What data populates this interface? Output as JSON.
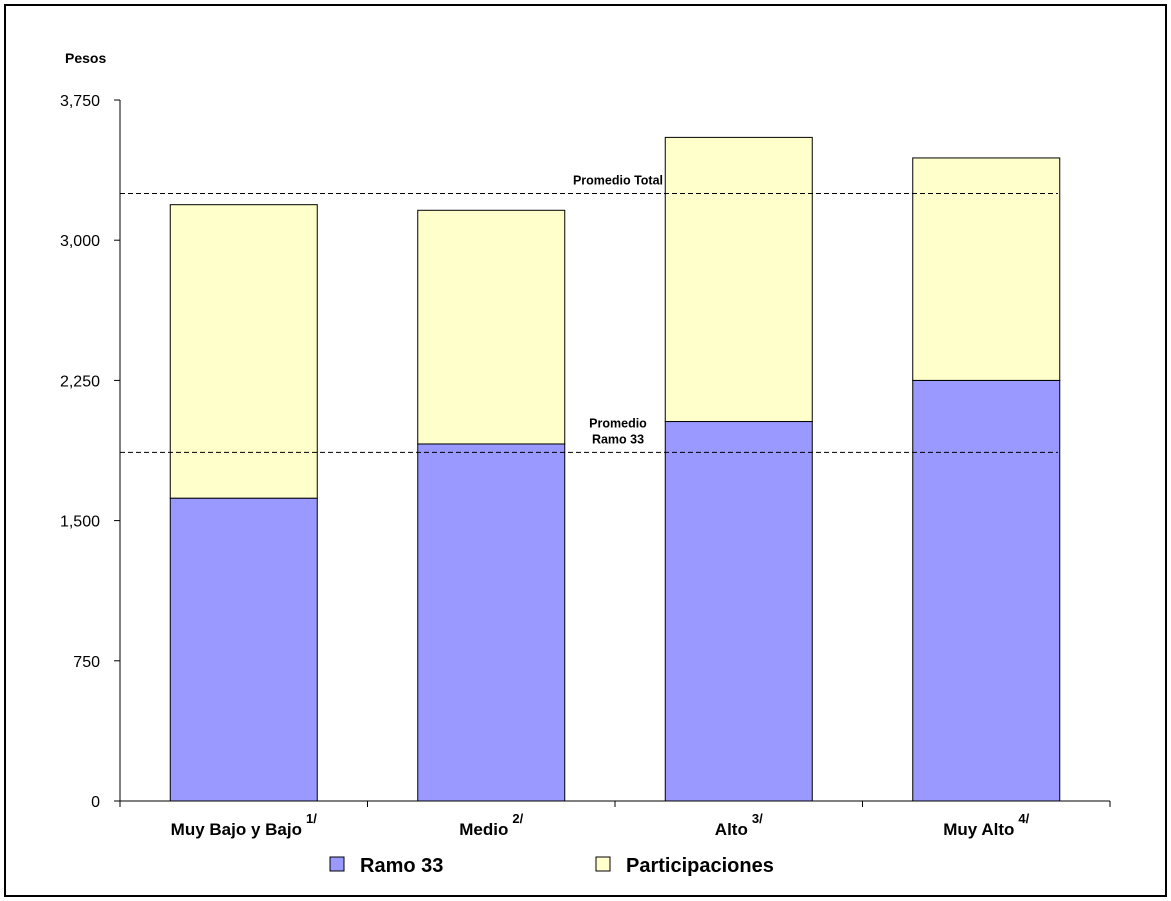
{
  "chart_data": {
    "type": "bar",
    "stacked": true,
    "ylabel": "Pesos",
    "ylim": [
      0,
      3750
    ],
    "yticks": [
      0,
      750,
      1500,
      2250,
      3000,
      3750
    ],
    "ytick_labels": [
      "0",
      "750",
      "1,500",
      "2,250",
      "3,000",
      "3,750"
    ],
    "grid": false,
    "categories": [
      "Muy Bajo y Bajo",
      "Medio",
      "Alto",
      "Muy Alto"
    ],
    "category_notes": [
      "1/",
      "2/",
      "3/",
      "4/"
    ],
    "series": [
      {
        "name": "Ramo 33",
        "color": "#9999ff",
        "values": [
          1620,
          1910,
          2030,
          2250
        ]
      },
      {
        "name": "Participaciones",
        "color": "#ffffcc",
        "values": [
          1570,
          1250,
          1520,
          1190
        ]
      }
    ],
    "reference_lines": [
      {
        "label": [
          "Promedio Total"
        ],
        "value": 3250
      },
      {
        "label": [
          "Promedio",
          "Ramo 33"
        ],
        "value": 1865
      }
    ],
    "legend_position": "bottom"
  }
}
